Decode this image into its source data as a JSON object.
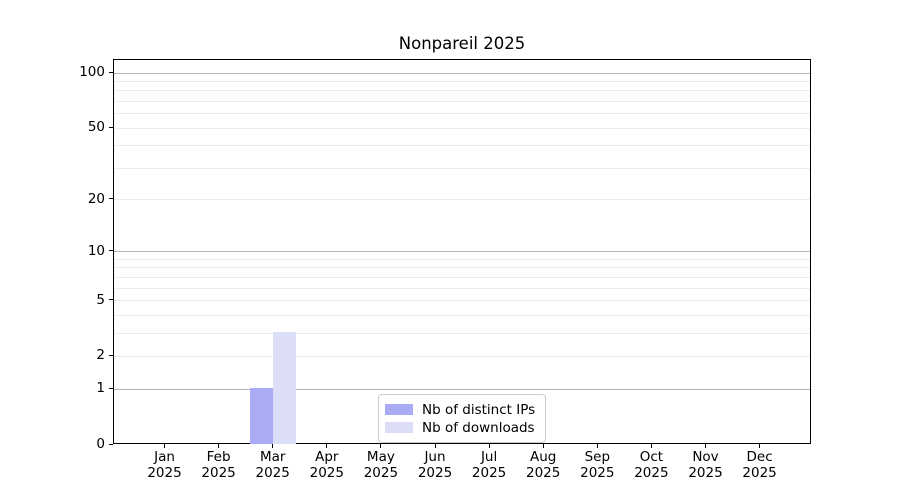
{
  "chart_data": {
    "type": "bar",
    "title": "Nonpareil 2025",
    "categories": [
      "Jan 2025",
      "Feb 2025",
      "Mar 2025",
      "Apr 2025",
      "May 2025",
      "Jun 2025",
      "Jul 2025",
      "Aug 2025",
      "Sep 2025",
      "Oct 2025",
      "Nov 2025",
      "Dec 2025"
    ],
    "series": [
      {
        "name": "Nb of distinct IPs",
        "color": "#a9abf4",
        "values": [
          0,
          0,
          1,
          0,
          0,
          0,
          0,
          0,
          0,
          0,
          0,
          0
        ]
      },
      {
        "name": "Nb of downloads",
        "color": "#dcdef8",
        "values": [
          0,
          0,
          3,
          0,
          0,
          0,
          0,
          0,
          0,
          0,
          0,
          0
        ]
      }
    ],
    "xlabel": "",
    "ylabel": "",
    "yscale": "log1p",
    "yticks": [
      0,
      1,
      2,
      5,
      10,
      20,
      50,
      100
    ],
    "ylim": [
      0,
      118
    ],
    "grid": "major-and-minor horizontal",
    "legend_position": "inside lower-center",
    "colors": {
      "major_grid": "#b3b3b3",
      "minor_grid": "#ebebeb",
      "spine": "#000000",
      "background": "#ffffff"
    }
  }
}
